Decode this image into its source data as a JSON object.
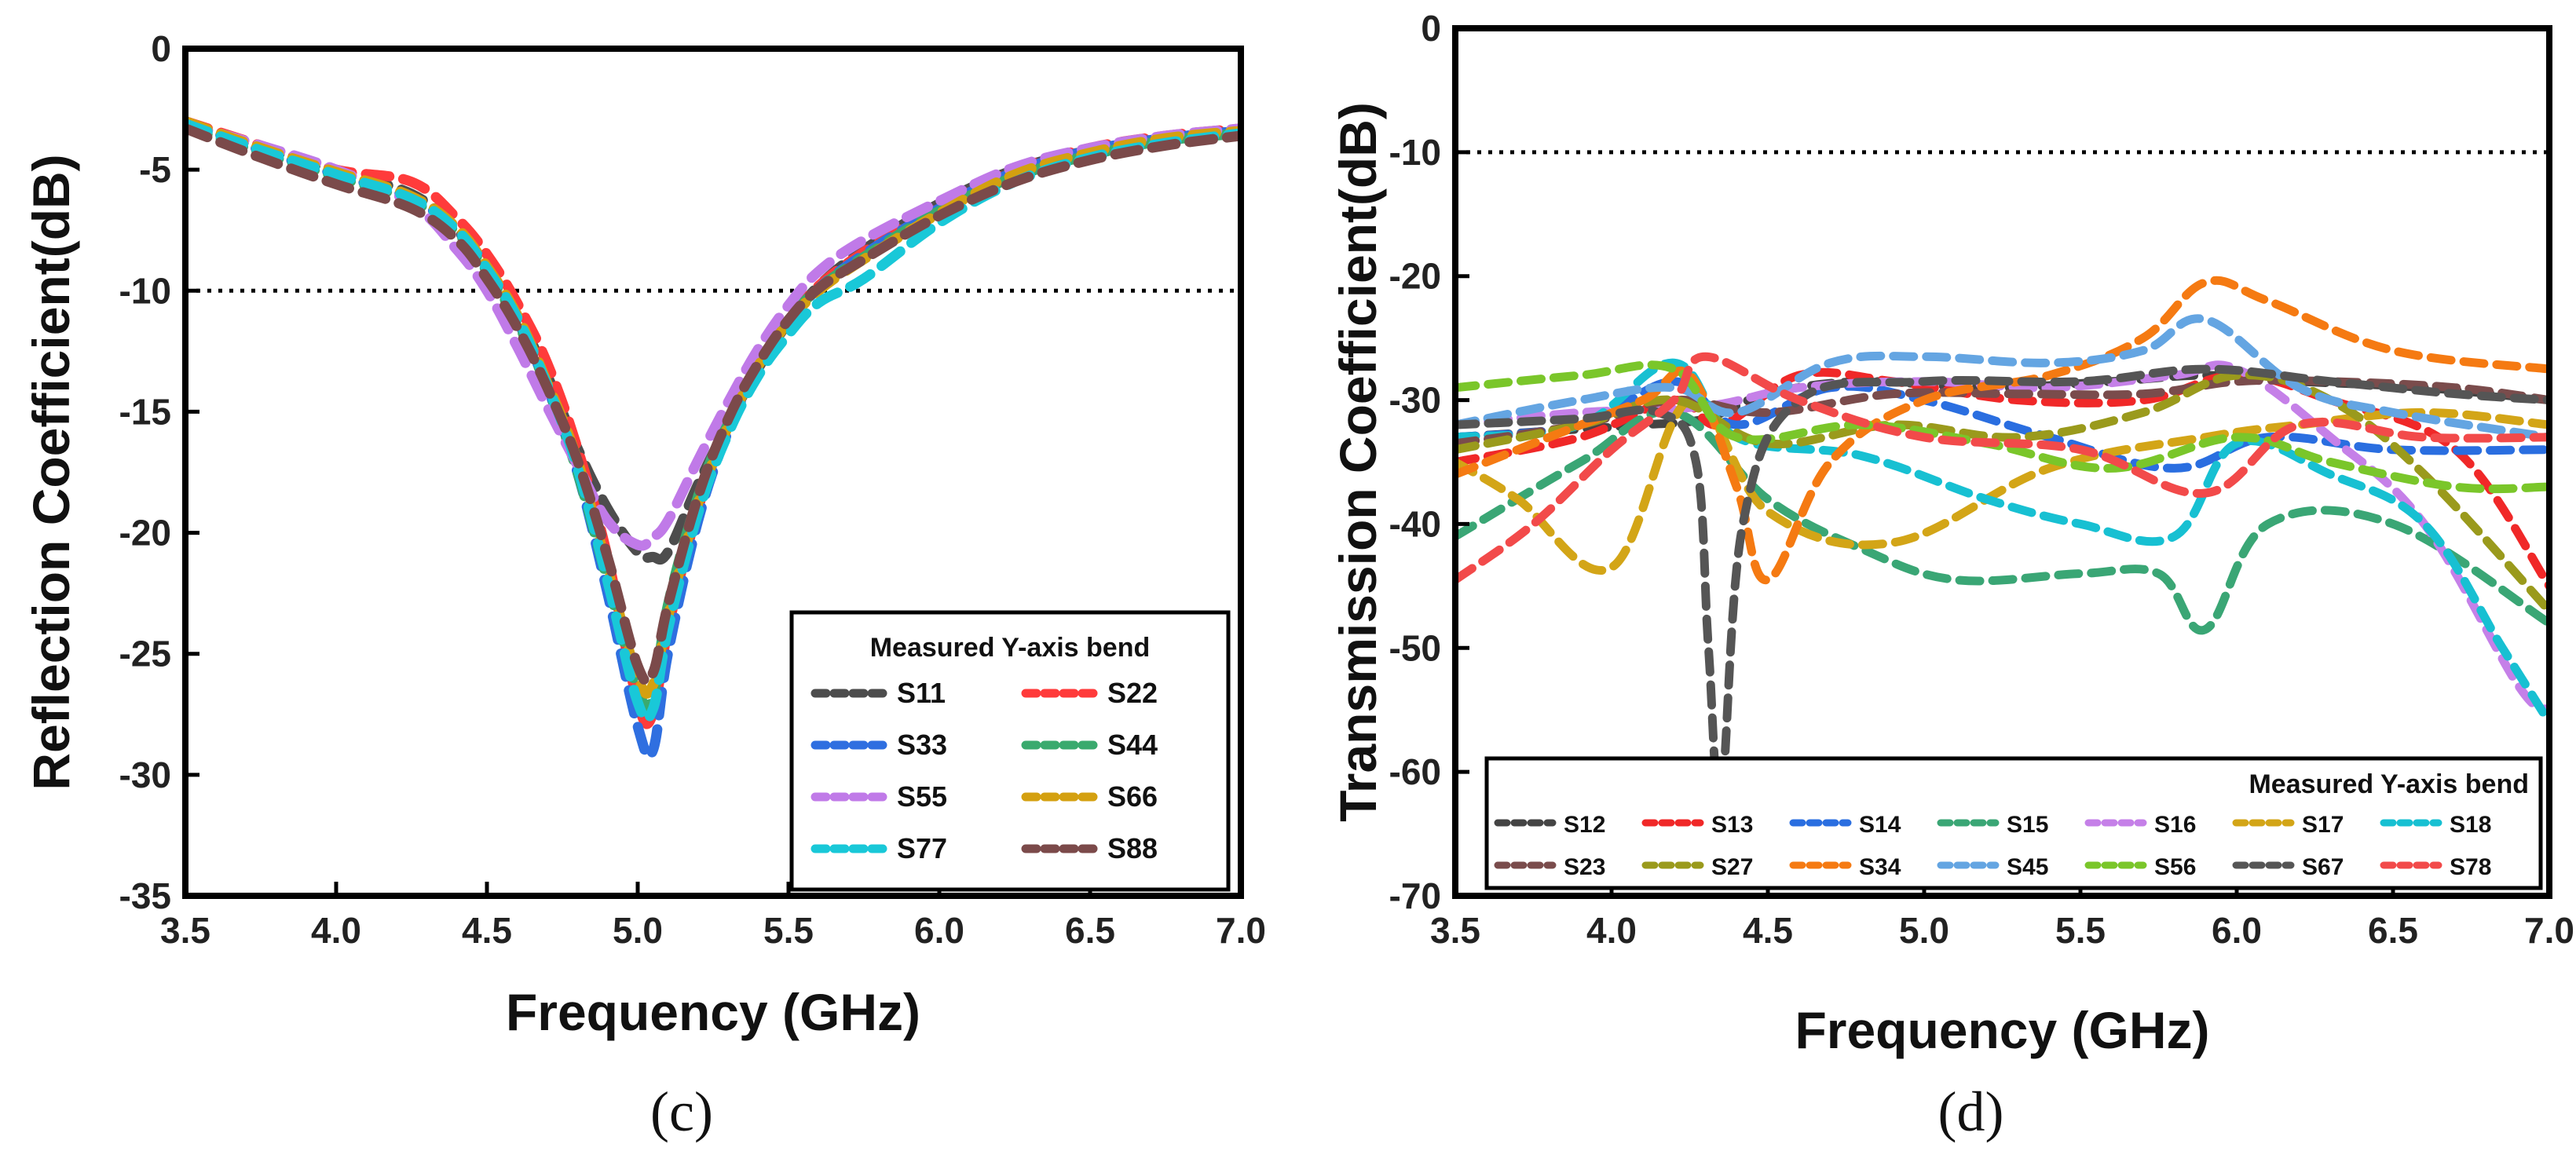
{
  "colors": {
    "S11": "#4d4d4d",
    "S22": "#ff3b3b",
    "S33": "#2f6fe0",
    "S44": "#3aaa6e",
    "S55": "#c07ae8",
    "S66": "#d4a010",
    "S77": "#19c8d8",
    "S88": "#7b4a4a",
    "S12": "#444444",
    "S13": "#f02828",
    "S14": "#2a6ee0",
    "S15": "#3aa675",
    "S16": "#c580e8",
    "S17": "#d3a517",
    "S18": "#17c0d2",
    "S23": "#7a4c4c",
    "S27": "#9a9a1c",
    "S34": "#f57a12",
    "S45": "#64a5e2",
    "S56": "#7ac62a",
    "S67": "#555555",
    "S78": "#f24a4a"
  },
  "chart_data": [
    {
      "type": "line",
      "panel": "c",
      "caption": "(c)",
      "xlabel": "Frequency (GHz)",
      "ylabel": "Reflection Coefficient(dB)",
      "xlim": [
        3.5,
        7.0
      ],
      "ylim": [
        -35,
        0
      ],
      "xticks": [
        "3.5",
        "4.0",
        "4.5",
        "5.0",
        "5.5",
        "6.0",
        "6.5",
        "7.0"
      ],
      "yticks": [
        "0",
        "-5",
        "-10",
        "-15",
        "-20",
        "-25",
        "-30",
        "-35"
      ],
      "reference_line": -10,
      "legend_title": "Measured Y-axis bend",
      "x": [
        3.5,
        3.75,
        4.0,
        4.25,
        4.4,
        4.5,
        4.6,
        4.7,
        4.8,
        4.9,
        5.0,
        5.05,
        5.1,
        5.2,
        5.3,
        5.4,
        5.5,
        5.6,
        5.75,
        6.0,
        6.25,
        6.5,
        6.75,
        7.0
      ],
      "series": [
        {
          "name": "S11",
          "values": [
            -3.1,
            -4.1,
            -5.1,
            -6.0,
            -7.5,
            -9.0,
            -11.0,
            -13.5,
            -16.5,
            -19.0,
            -20.8,
            -21.0,
            -20.8,
            -18.0,
            -15.5,
            -13.2,
            -11.3,
            -9.8,
            -8.3,
            -6.4,
            -5.0,
            -4.2,
            -3.7,
            -3.4
          ]
        },
        {
          "name": "S22",
          "values": [
            -3.0,
            -4.0,
            -5.0,
            -5.5,
            -7.0,
            -8.5,
            -10.5,
            -13.0,
            -16.5,
            -21.0,
            -27.0,
            -27.5,
            -24.0,
            -19.0,
            -15.5,
            -13.0,
            -11.2,
            -9.8,
            -8.4,
            -6.5,
            -5.0,
            -4.1,
            -3.6,
            -3.3
          ]
        },
        {
          "name": "S33",
          "values": [
            -3.0,
            -4.2,
            -5.2,
            -6.2,
            -7.5,
            -9.0,
            -11.2,
            -14.0,
            -17.5,
            -22.5,
            -28.0,
            -29.0,
            -25.0,
            -19.5,
            -15.8,
            -13.2,
            -11.3,
            -9.9,
            -8.5,
            -6.6,
            -5.1,
            -4.2,
            -3.7,
            -3.4
          ]
        },
        {
          "name": "S44",
          "values": [
            -3.2,
            -4.3,
            -5.3,
            -6.3,
            -7.6,
            -9.2,
            -11.3,
            -14.0,
            -17.5,
            -22.0,
            -26.5,
            -26.8,
            -23.0,
            -18.5,
            -15.3,
            -13.0,
            -11.2,
            -9.9,
            -8.6,
            -6.7,
            -5.3,
            -4.4,
            -3.8,
            -3.5
          ]
        },
        {
          "name": "S55",
          "values": [
            -3.1,
            -4.0,
            -5.0,
            -6.4,
            -8.3,
            -10.0,
            -12.3,
            -14.8,
            -17.2,
            -19.5,
            -20.5,
            -20.2,
            -19.5,
            -17.0,
            -14.6,
            -12.4,
            -10.6,
            -9.2,
            -7.9,
            -6.3,
            -4.9,
            -4.1,
            -3.6,
            -3.3
          ]
        },
        {
          "name": "S66",
          "values": [
            -3.0,
            -4.1,
            -5.1,
            -6.1,
            -7.4,
            -9.0,
            -11.0,
            -13.8,
            -17.0,
            -21.5,
            -26.0,
            -26.3,
            -23.5,
            -18.8,
            -15.6,
            -13.1,
            -11.3,
            -10.0,
            -8.7,
            -6.8,
            -5.2,
            -4.3,
            -3.7,
            -3.4
          ]
        },
        {
          "name": "S77",
          "values": [
            -3.1,
            -4.2,
            -5.2,
            -6.2,
            -7.5,
            -9.1,
            -11.1,
            -13.9,
            -17.3,
            -22.0,
            -27.0,
            -27.3,
            -24.0,
            -19.2,
            -15.9,
            -13.5,
            -11.8,
            -10.5,
            -9.5,
            -7.2,
            -5.5,
            -4.5,
            -3.9,
            -3.5
          ]
        },
        {
          "name": "S88",
          "values": [
            -3.3,
            -4.5,
            -5.6,
            -6.6,
            -7.9,
            -9.5,
            -11.5,
            -14.0,
            -17.0,
            -21.0,
            -25.5,
            -25.8,
            -23.0,
            -18.5,
            -15.3,
            -13.0,
            -11.2,
            -9.9,
            -8.7,
            -6.9,
            -5.5,
            -4.6,
            -4.0,
            -3.6
          ]
        }
      ]
    },
    {
      "type": "line",
      "panel": "d",
      "caption": "(d)",
      "xlabel": "Frequency (GHz)",
      "ylabel": "Transmission Coefficient(dB)",
      "xlim": [
        3.5,
        7.0
      ],
      "ylim": [
        -70,
        0
      ],
      "xticks": [
        "3.5",
        "4.0",
        "4.5",
        "5.0",
        "5.5",
        "6.0",
        "6.5",
        "7.0"
      ],
      "yticks": [
        "0",
        "-10",
        "-20",
        "-30",
        "-40",
        "-50",
        "-60",
        "-70"
      ],
      "reference_line": -10,
      "legend_title": "Measured Y-axis bend",
      "series": [
        {
          "name": "S12",
          "x": [
            3.5,
            3.8,
            4.1,
            4.3,
            4.5,
            4.8,
            5.2,
            5.6,
            5.9,
            6.2,
            6.6,
            7.0
          ],
          "values": [
            -33,
            -32.5,
            -32,
            -31.5,
            -29.5,
            -28.5,
            -29,
            -28.5,
            -28,
            -28.5,
            -29,
            -30
          ]
        },
        {
          "name": "S13",
          "x": [
            3.5,
            3.9,
            4.2,
            4.35,
            4.6,
            4.9,
            5.3,
            5.7,
            6.0,
            6.3,
            6.7,
            7.0
          ],
          "values": [
            -35,
            -33,
            -30,
            -32,
            -28,
            -28.5,
            -30,
            -30,
            -28,
            -30,
            -34,
            -45
          ]
        },
        {
          "name": "S14",
          "x": [
            3.5,
            3.9,
            4.2,
            4.4,
            4.7,
            5.0,
            5.4,
            5.8,
            6.1,
            6.5,
            7.0
          ],
          "values": [
            -33,
            -32,
            -28.5,
            -32,
            -29,
            -30,
            -33,
            -35.5,
            -33,
            -34,
            -34
          ]
        },
        {
          "name": "S15",
          "x": [
            3.5,
            3.9,
            4.2,
            4.5,
            4.8,
            5.1,
            5.5,
            5.75,
            5.9,
            6.1,
            6.5,
            7.0
          ],
          "values": [
            -41,
            -35,
            -31,
            -38,
            -42,
            -44.5,
            -44,
            -44,
            -48.5,
            -40,
            -40,
            -48
          ]
        },
        {
          "name": "S16",
          "x": [
            3.5,
            3.9,
            4.3,
            4.6,
            5.0,
            5.4,
            5.8,
            6.0,
            6.3,
            6.6,
            6.9,
            7.0
          ],
          "values": [
            -32,
            -31,
            -30.5,
            -29,
            -28.5,
            -29,
            -28,
            -27.5,
            -33,
            -40,
            -53,
            -55
          ]
        },
        {
          "name": "S17",
          "x": [
            3.5,
            3.7,
            4.0,
            4.25,
            4.5,
            4.9,
            5.4,
            5.9,
            6.2,
            6.6,
            7.0
          ],
          "values": [
            -35,
            -38,
            -43.5,
            -30,
            -39,
            -41.5,
            -35.5,
            -33,
            -32,
            -31,
            -32
          ]
        },
        {
          "name": "S18",
          "x": [
            3.5,
            3.9,
            4.2,
            4.4,
            4.8,
            5.2,
            5.5,
            5.8,
            6.0,
            6.3,
            6.6,
            6.85,
            7.0
          ],
          "values": [
            -33,
            -32,
            -27,
            -33,
            -34.5,
            -38,
            -40,
            -41,
            -33.5,
            -36,
            -40,
            -50,
            -56
          ]
        },
        {
          "name": "S23",
          "x": [
            3.5,
            3.9,
            4.2,
            4.5,
            4.9,
            5.3,
            5.7,
            6.0,
            6.3,
            6.7,
            7.0
          ],
          "values": [
            -33.5,
            -32,
            -30,
            -31,
            -29.5,
            -29.5,
            -29.5,
            -28.5,
            -28.5,
            -29,
            -30
          ]
        },
        {
          "name": "S27",
          "x": [
            3.5,
            3.9,
            4.2,
            4.5,
            4.9,
            5.3,
            5.7,
            6.0,
            6.3,
            6.6,
            7.0
          ],
          "values": [
            -34,
            -32,
            -30,
            -33.5,
            -32,
            -33,
            -31,
            -28,
            -30,
            -36,
            -47
          ]
        },
        {
          "name": "S34",
          "x": [
            3.5,
            3.8,
            4.1,
            4.25,
            4.4,
            4.5,
            4.7,
            5.0,
            5.4,
            5.7,
            5.9,
            6.1,
            6.5,
            7.0
          ],
          "values": [
            -36,
            -33,
            -30,
            -28,
            -37,
            -44.5,
            -35,
            -30,
            -28,
            -25,
            -20.5,
            -22,
            -26,
            -27.5
          ]
        },
        {
          "name": "S45",
          "x": [
            3.5,
            3.9,
            4.2,
            4.4,
            4.7,
            5.0,
            5.4,
            5.7,
            5.9,
            6.2,
            6.5,
            7.0
          ],
          "values": [
            -32,
            -30,
            -29,
            -31,
            -27,
            -26.5,
            -27,
            -26,
            -23.5,
            -29,
            -31,
            -33
          ]
        },
        {
          "name": "S56",
          "x": [
            3.5,
            3.9,
            4.2,
            4.4,
            4.8,
            5.2,
            5.6,
            6.0,
            6.3,
            6.7,
            7.0
          ],
          "values": [
            -29,
            -28,
            -27.5,
            -33,
            -32,
            -33.5,
            -35.5,
            -33,
            -35,
            -37,
            -37
          ]
        },
        {
          "name": "S67",
          "x": [
            3.5,
            3.9,
            4.15,
            4.27,
            4.31,
            4.35,
            4.42,
            4.6,
            5.0,
            5.5,
            5.9,
            6.3,
            6.7,
            7.0
          ],
          "values": [
            -32,
            -31.5,
            -31,
            -35,
            -50,
            -62,
            -40,
            -30,
            -28.5,
            -28.5,
            -27.5,
            -28.5,
            -29.5,
            -30
          ]
        },
        {
          "name": "S78",
          "x": [
            3.5,
            3.75,
            4.0,
            4.2,
            4.3,
            4.6,
            5.0,
            5.5,
            5.9,
            6.2,
            6.6,
            7.0
          ],
          "values": [
            -44.5,
            -40,
            -34,
            -30,
            -26.5,
            -30,
            -33,
            -34,
            -37.5,
            -32,
            -33,
            -33
          ]
        }
      ]
    }
  ]
}
